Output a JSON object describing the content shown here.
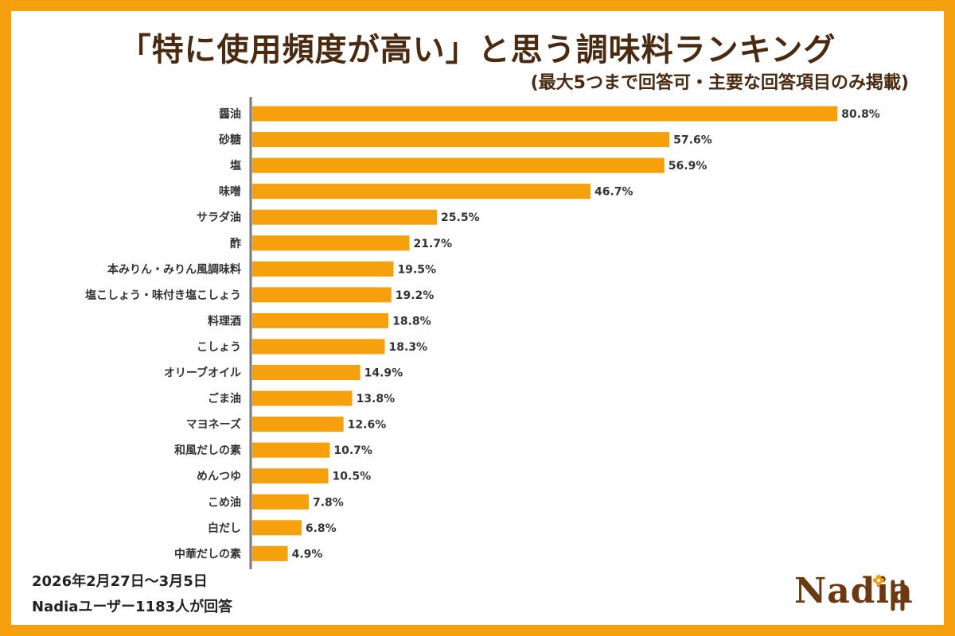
{
  "header": {
    "title": "「特に使用頻度が高い」と思う調味料ランキング",
    "subtitle": "(最大5つまで回答可・主要な回答項目のみ掲載)"
  },
  "footer": {
    "date": "2026年2月27日〜3月5日",
    "respondents": "Nadiaユーザー1183人が回答"
  },
  "logo": {
    "text": "Nadia",
    "icon": "flower-fork-icon"
  },
  "colors": {
    "background": "#F5A00C",
    "bar": "#F5A00C",
    "axis": "#777777",
    "text": "#333333",
    "title": "#4A2A10"
  },
  "chart_data": {
    "type": "bar",
    "orientation": "horizontal",
    "title": "「特に使用頻度が高い」と思う調味料ランキング",
    "xlabel": "",
    "ylabel": "",
    "xlim": [
      0,
      100
    ],
    "grid": false,
    "categories": [
      "醤油",
      "砂糖",
      "塩",
      "味噌",
      "サラダ油",
      "酢",
      "本みりん・みりん風調味料",
      "塩こしょう・味付き塩こしょう",
      "料理酒",
      "こしょう",
      "オリーブオイル",
      "ごま油",
      "マヨネーズ",
      "和風だしの素",
      "めんつゆ",
      "こめ油",
      "白だし",
      "中華だしの素"
    ],
    "values": [
      80.8,
      57.6,
      56.9,
      46.7,
      25.5,
      21.7,
      19.5,
      19.2,
      18.8,
      18.3,
      14.9,
      13.8,
      12.6,
      10.7,
      10.5,
      7.8,
      6.8,
      4.9
    ],
    "value_labels": [
      "80.8%",
      "57.6%",
      "56.9%",
      "46.7%",
      "25.5%",
      "21.7%",
      "19.5%",
      "19.2%",
      "18.8%",
      "18.3%",
      "14.9%",
      "13.8%",
      "12.6%",
      "10.7%",
      "10.5%",
      "7.8%",
      "6.8%",
      "4.9%"
    ]
  }
}
